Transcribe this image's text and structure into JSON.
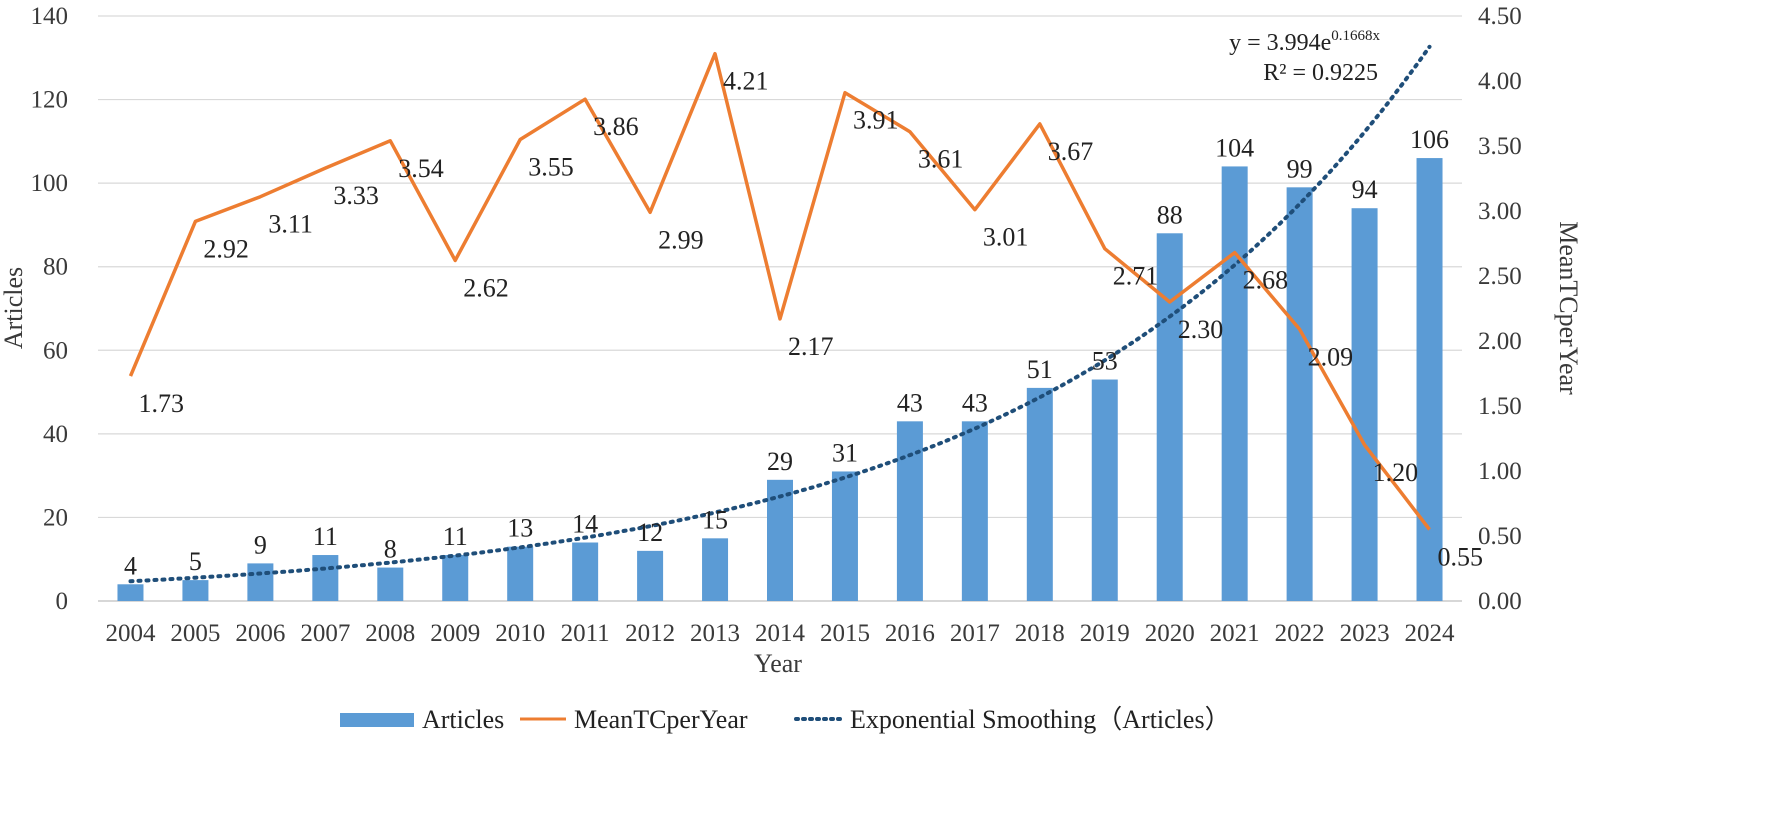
{
  "chart_data": {
    "type": "bar",
    "categories": [
      "2004",
      "2005",
      "2006",
      "2007",
      "2008",
      "2009",
      "2010",
      "2011",
      "2012",
      "2013",
      "2014",
      "2015",
      "2016",
      "2017",
      "2018",
      "2019",
      "2020",
      "2021",
      "2022",
      "2023",
      "2024"
    ],
    "series": [
      {
        "name": "Articles",
        "type": "bar",
        "axis": "left",
        "color": "#5b9bd5",
        "values": [
          4,
          5,
          9,
          11,
          8,
          11,
          13,
          14,
          12,
          15,
          29,
          31,
          43,
          43,
          51,
          53,
          88,
          104,
          99,
          94,
          106
        ],
        "labels": [
          "4",
          "5",
          "9",
          "11",
          "8",
          "11",
          "13",
          "14",
          "12",
          "15",
          "29",
          "31",
          "43",
          "43",
          "51",
          "53",
          "88",
          "104",
          "99",
          "94",
          "106"
        ]
      },
      {
        "name": "MeanTCperYear",
        "type": "line",
        "axis": "right",
        "color": "#ed7d31",
        "values": [
          1.73,
          2.92,
          3.11,
          3.33,
          3.54,
          2.62,
          3.55,
          3.86,
          2.99,
          4.21,
          2.17,
          3.91,
          3.61,
          3.01,
          3.67,
          2.71,
          2.3,
          2.68,
          2.09,
          1.2,
          0.55
        ],
        "labels": [
          "1.73",
          "2.92",
          "3.11",
          "3.33",
          "3.54",
          "2.62",
          "3.55",
          "3.86",
          "2.99",
          "4.21",
          "2.17",
          "3.91",
          "3.61",
          "3.01",
          "3.67",
          "2.71",
          "2.30",
          "2.68",
          "2.09",
          "1.20",
          "0.55"
        ]
      },
      {
        "name": "Exponential Smoothing（Articles）",
        "type": "trendline",
        "axis": "left",
        "color": "#1f4e79",
        "a": 3.994,
        "b": 0.1668
      }
    ],
    "xlabel": "Year",
    "ylabel": "Articles",
    "y2label": "MeanTCperYear",
    "ylim": [
      0,
      140
    ],
    "y2lim": [
      0,
      4.5
    ],
    "yticks": [
      "0",
      "20",
      "40",
      "60",
      "80",
      "100",
      "120",
      "140"
    ],
    "y2ticks": [
      "0.00",
      "0.50",
      "1.00",
      "1.50",
      "2.00",
      "2.50",
      "3.00",
      "3.50",
      "4.00",
      "4.50"
    ],
    "equation": {
      "prefix": "y = 3.994e",
      "exponent": "0.1668x",
      "r2": "R² = 0.9225"
    },
    "grid": true,
    "legend_position": "bottom"
  }
}
